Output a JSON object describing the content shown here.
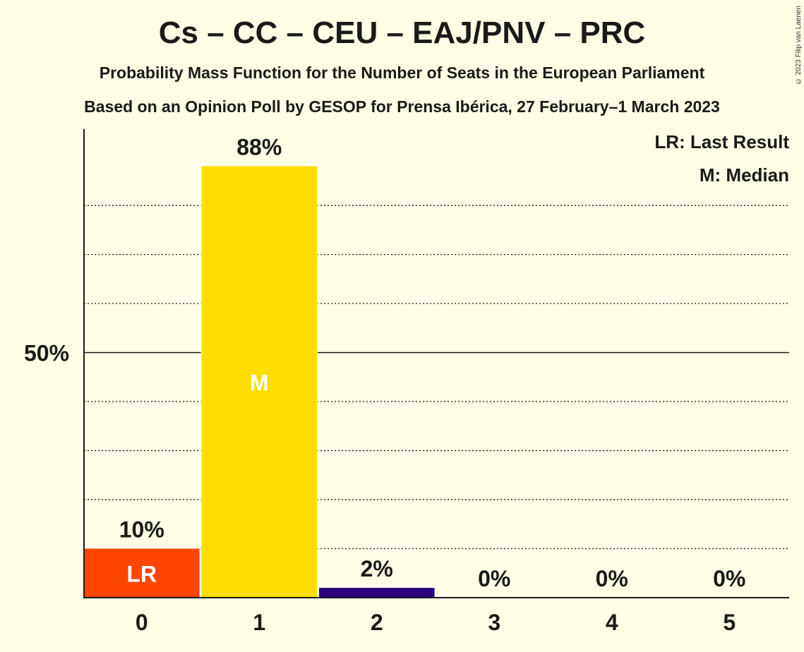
{
  "title": "Cs – CC – CEU – EAJ/PNV – PRC",
  "subtitle_1": "Probability Mass Function for the Number of Seats in the European Parliament",
  "subtitle_2": "Based on an Opinion Poll by GESOP for Prensa Ibérica, 27 February–1 March 2023",
  "copyright": "© 2023 Filip van Laenen",
  "legend": {
    "last_result": "LR: Last Result",
    "median": "M: Median"
  },
  "colors": {
    "background": "#FFFEE6",
    "last_result_bar": "#FF4500",
    "median_bar": "#FFDD00",
    "other_bar": "#2A0080"
  },
  "chart_data": {
    "type": "bar",
    "categories": [
      "0",
      "1",
      "2",
      "3",
      "4",
      "5"
    ],
    "values": [
      10,
      88,
      2,
      0,
      0,
      0
    ],
    "value_labels": [
      "10%",
      "88%",
      "2%",
      "0%",
      "0%",
      "0%"
    ],
    "bar_markers": [
      "LR",
      "M",
      "",
      "",
      "",
      ""
    ],
    "ylim": [
      0,
      96
    ],
    "yticks": [
      {
        "value": 50,
        "label": "50%"
      }
    ],
    "gridlines": [
      10,
      20,
      30,
      40,
      60,
      70,
      80
    ],
    "xlabel": "",
    "ylabel": "",
    "legend_position": "top-right"
  }
}
